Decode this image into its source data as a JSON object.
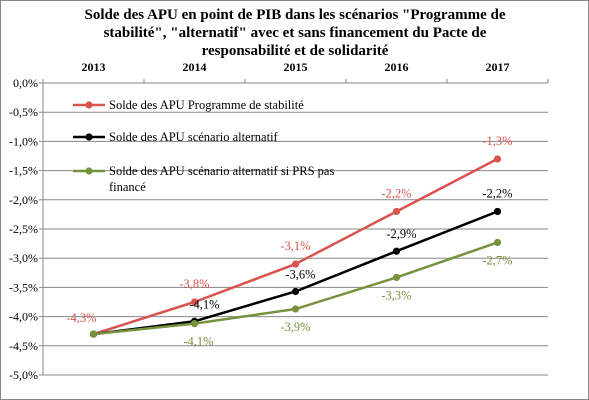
{
  "chart_data": {
    "type": "line",
    "title_lines": [
      "Solde des APU en point de PIB dans les scénarios \"Programme de",
      "stabilité\", \"alternatif\" avec et sans financement du Pacte de",
      "responsabilité et de solidarité"
    ],
    "x": [
      "2013",
      "2014",
      "2015",
      "2016",
      "2017"
    ],
    "x_axis_position": "top",
    "ylim": [
      -5.0,
      0.0
    ],
    "yticks": [
      "0,0%",
      "-0,5%",
      "-1,0%",
      "-1,5%",
      "-2,0%",
      "-2,5%",
      "-3,0%",
      "-3,5%",
      "-4,0%",
      "-4,5%",
      "-5,0%"
    ],
    "grid": true,
    "legend_position": "top-left",
    "series": [
      {
        "name": "Solde des APU Programme  de stabilité",
        "color": "#d9534f",
        "values": [
          -4.3,
          -3.75,
          -3.1,
          -2.2,
          -1.3
        ],
        "labels": [
          "-4,3%",
          "-3,8%",
          "-3,1%",
          "-2,2%",
          "-1,3%"
        ]
      },
      {
        "name": "Solde des APU scénario alternatif",
        "color": "#000000",
        "values": [
          -4.3,
          -4.08,
          -3.57,
          -2.88,
          -2.2
        ],
        "labels": [
          "",
          "-4,1%",
          "-3,6%",
          "-2,9%",
          "-2,2%"
        ]
      },
      {
        "name_lines": [
          "Solde des APU scénario alternatif  si PRS pas",
          "financé"
        ],
        "color": "#76923c",
        "values": [
          -4.3,
          -4.12,
          -3.87,
          -3.33,
          -2.73
        ],
        "labels": [
          "",
          "-4,1%",
          "-3,9%",
          "-3,3%",
          "-2,7%"
        ]
      }
    ]
  }
}
